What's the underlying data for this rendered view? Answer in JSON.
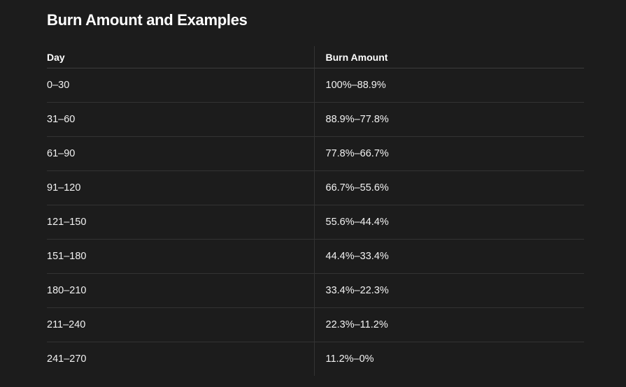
{
  "heading": "Burn Amount and Examples",
  "table": {
    "headers": [
      "Day",
      "Burn Amount"
    ],
    "rows": [
      [
        "0–30",
        "100%–88.9%"
      ],
      [
        "31–60",
        "88.9%–77.8%"
      ],
      [
        "61–90",
        "77.8%–66.7%"
      ],
      [
        "91–120",
        "66.7%–55.6%"
      ],
      [
        "121–150",
        "55.6%–44.4%"
      ],
      [
        "151–180",
        "44.4%–33.4%"
      ],
      [
        "180–210",
        "33.4%–22.3%"
      ],
      [
        "211–240",
        "22.3%–11.2%"
      ],
      [
        "241–270",
        "11.2%–0%"
      ]
    ]
  }
}
